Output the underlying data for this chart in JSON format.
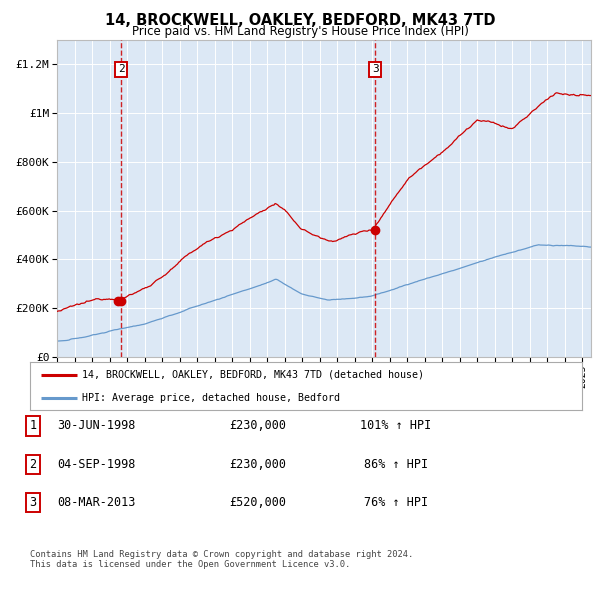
{
  "title": "14, BROCKWELL, OAKLEY, BEDFORD, MK43 7TD",
  "subtitle": "Price paid vs. HM Land Registry's House Price Index (HPI)",
  "legend_property": "14, BROCKWELL, OAKLEY, BEDFORD, MK43 7TD (detached house)",
  "legend_hpi": "HPI: Average price, detached house, Bedford",
  "table_rows": [
    {
      "num": "1",
      "date": "30-JUN-1998",
      "price": "£230,000",
      "pct": "101% ↑ HPI"
    },
    {
      "num": "2",
      "date": "04-SEP-1998",
      "price": "£230,000",
      "pct": "86% ↑ HPI"
    },
    {
      "num": "3",
      "date": "08-MAR-2013",
      "price": "£520,000",
      "pct": "76% ↑ HPI"
    }
  ],
  "footer": "Contains HM Land Registry data © Crown copyright and database right 2024.\nThis data is licensed under the Open Government Licence v3.0.",
  "property_color": "#cc0000",
  "hpi_color": "#6699cc",
  "background_chart": "#dce8f5",
  "background_fig": "#ffffff",
  "vline_color": "#cc0000",
  "t1_year": 1998.496,
  "t2_year": 1998.671,
  "t3_year": 2013.18,
  "t1_price": 230000,
  "t2_price": 230000,
  "t3_price": 520000,
  "ylim_max": 1300000,
  "xlim_start": 1995.0,
  "xlim_end": 2025.5,
  "yticks": [
    0,
    200000,
    400000,
    600000,
    800000,
    1000000,
    1200000
  ],
  "ylabels": [
    "£0",
    "£200K",
    "£400K",
    "£600K",
    "£800K",
    "£1M",
    "£1.2M"
  ]
}
